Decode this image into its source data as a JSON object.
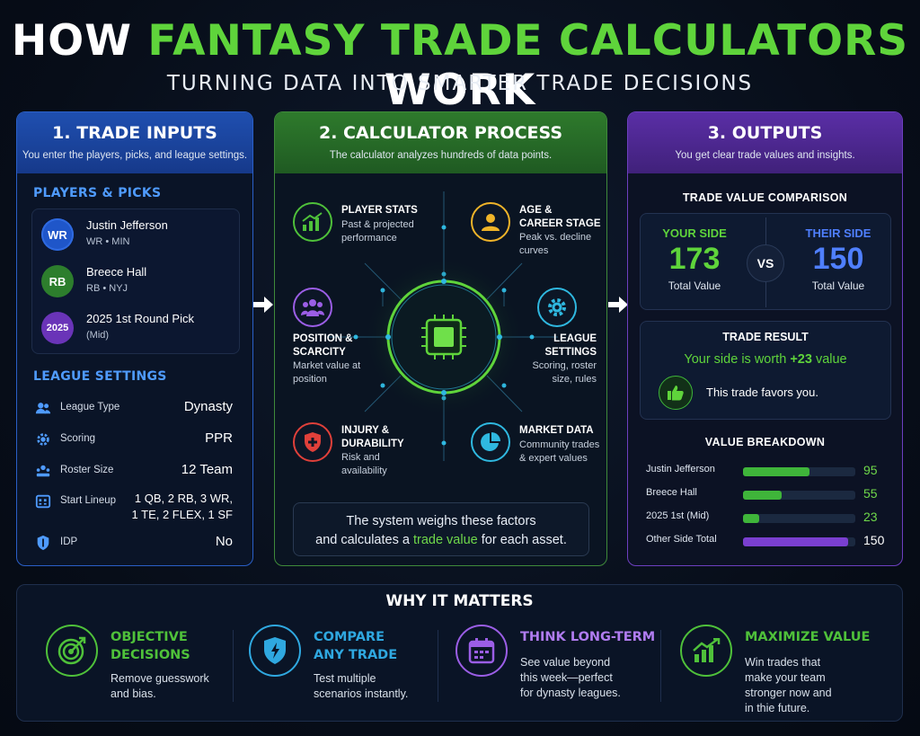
{
  "title": {
    "part1": "HOW ",
    "part2": "FANTASY TRADE CALCULATORS",
    "part3": " WORK"
  },
  "subtitle": "TURNING DATA INTO SMARTER TRADE DECISIONS",
  "colors": {
    "green": "#5fd43b",
    "blue": "#2a5fc7",
    "purple": "#6d3fc0",
    "gold": "#f0b429",
    "red": "#e0403a",
    "teal": "#2fb8e0"
  },
  "inputs": {
    "heading": "1. TRADE INPUTS",
    "desc": "You enter the players, picks, and league settings.",
    "players_title": "PLAYERS & PICKS",
    "players": [
      {
        "badge": "WR",
        "name": "Justin Jefferson",
        "meta": "WR • MIN",
        "color": "#1f56c9"
      },
      {
        "badge": "RB",
        "name": "Breece Hall",
        "meta": "RB • NYJ",
        "color": "#2d7e2d"
      },
      {
        "badge": "2025",
        "name": "2025 1st Round Pick",
        "meta": "(Mid)",
        "color": "#6a34b8"
      }
    ],
    "league_title": "LEAGUE SETTINGS",
    "settings": [
      {
        "icon": "users-icon",
        "label": "League Type",
        "value": "Dynasty"
      },
      {
        "icon": "gear-icon",
        "label": "Scoring",
        "value": "PPR"
      },
      {
        "icon": "roster-icon",
        "label": "Roster Size",
        "value": "12 Team"
      },
      {
        "icon": "lineup-icon",
        "label": "Start Lineup",
        "value_line1": "1 QB, 2 RB, 3 WR,",
        "value_line2": "1 TE, 2 FLEX, 1 SF"
      },
      {
        "icon": "shield-icon",
        "label": "IDP",
        "value": "No"
      }
    ]
  },
  "process": {
    "heading": "2. CALCULATOR PROCESS",
    "desc": "The calculator analyzes hundreds of data points.",
    "factors": [
      {
        "icon": "chart-icon",
        "title": "PLAYER STATS",
        "desc1": "Past & projected",
        "desc2": "performance"
      },
      {
        "icon": "person-icon",
        "title1": "AGE &",
        "title2": "CAREER STAGE",
        "desc1": "Peak vs. decline",
        "desc2": "curves"
      },
      {
        "icon": "group-icon",
        "title1": "POSITION &",
        "title2": "SCARCITY",
        "desc1": "Market value at",
        "desc2": "position"
      },
      {
        "icon": "gear-icon",
        "title1": "LEAGUE",
        "title2": "SETTINGS",
        "desc1": "Scoring, roster",
        "desc2": "size, rules"
      },
      {
        "icon": "medical-shield-icon",
        "title1": "INJURY &",
        "title2": "DURABILITY",
        "desc1": "Risk and",
        "desc2": "availability"
      },
      {
        "icon": "pie-icon",
        "title": "MARKET DATA",
        "desc1": "Community trades",
        "desc2": "& expert values"
      }
    ],
    "summary_line1": "The system weighs these factors",
    "summary_pre": "and calculates a ",
    "summary_highlight": "trade value",
    "summary_post": " for each asset."
  },
  "outputs": {
    "heading": "3. OUTPUTS",
    "desc": "You get clear trade values and insights.",
    "comparison_title": "TRADE VALUE COMPARISON",
    "your_label": "YOUR SIDE",
    "your_value": "173",
    "your_sub": "Total Value",
    "vs": "VS",
    "their_label": "THEIR SIDE",
    "their_value": "150",
    "their_sub": "Total Value",
    "result_title": "TRADE RESULT",
    "result_pre": "Your side is worth ",
    "result_value": "+23",
    "result_post": " value",
    "result_note": "This trade favors you.",
    "breakdown_title": "VALUE BREAKDOWN",
    "breakdown_max": 160,
    "breakdown": [
      {
        "label": "Justin Jefferson",
        "value": 95,
        "color": "#3fb53a",
        "text_color": "#6fd84a"
      },
      {
        "label": "Breece Hall",
        "value": 55,
        "color": "#3fb53a",
        "text_color": "#6fd84a"
      },
      {
        "label": "2025 1st (Mid)",
        "value": 23,
        "color": "#3fb53a",
        "text_color": "#6fd84a"
      },
      {
        "label": "Other Side Total",
        "value": 150,
        "color": "#7a3fd0",
        "text_color": "#ffffff"
      }
    ]
  },
  "why": {
    "title": "WHY IT MATTERS",
    "items": [
      {
        "icon": "target-icon",
        "title1": "OBJECTIVE",
        "title2": "DECISIONS",
        "d1": "Remove guesswork",
        "d2": "and bias.",
        "color": "#4fc13a"
      },
      {
        "icon": "shield-icon",
        "title1": "COMPARE",
        "title2": "ANY TRADE",
        "d1": "Test multiple",
        "d2": "scenarios instantly.",
        "color": "#2fa8e0"
      },
      {
        "icon": "calendar-icon",
        "title1": "THINK LONG-TERM",
        "d1": "See value beyond",
        "d2": "this week—perfect",
        "d3": "for dynasty leagues.",
        "color": "#9b5ee6"
      },
      {
        "icon": "growth-chart-icon",
        "title1": "MAXIMIZE VALUE",
        "d1": "Win trades that",
        "d2": "make your team",
        "d3": "stronger now and",
        "d4": "in thie future.",
        "color": "#4fc13a"
      }
    ]
  }
}
